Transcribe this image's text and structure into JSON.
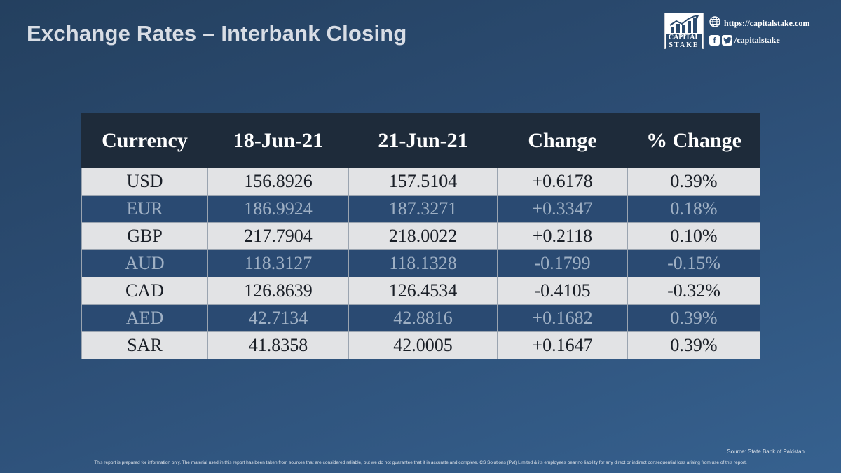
{
  "title": "Exchange Rates – Interbank Closing",
  "brand": {
    "logo_line1": "CAPITAL",
    "logo_line2": "STAKE",
    "website": "https://capitalstake.com",
    "social_handle": "/capitalstake",
    "icons": [
      "globe-icon",
      "facebook-icon",
      "twitter-icon",
      "chart-logo-icon"
    ]
  },
  "table": {
    "headers": [
      "Currency",
      "18-Jun-21",
      "21-Jun-21",
      "Change",
      "% Change"
    ],
    "rows": [
      {
        "currency": "USD",
        "prev": "156.8926",
        "curr": "157.5104",
        "change": "+0.6178",
        "pct": "0.39%"
      },
      {
        "currency": "EUR",
        "prev": "186.9924",
        "curr": "187.3271",
        "change": "+0.3347",
        "pct": "0.18%"
      },
      {
        "currency": "GBP",
        "prev": "217.7904",
        "curr": "218.0022",
        "change": "+0.2118",
        "pct": "0.10%"
      },
      {
        "currency": "AUD",
        "prev": "118.3127",
        "curr": "118.1328",
        "change": "-0.1799",
        "pct": "-0.15%"
      },
      {
        "currency": "CAD",
        "prev": "126.8639",
        "curr": "126.4534",
        "change": "-0.4105",
        "pct": "-0.32%"
      },
      {
        "currency": "AED",
        "prev": "42.7134",
        "curr": "42.8816",
        "change": "+0.1682",
        "pct": "0.39%"
      },
      {
        "currency": "SAR",
        "prev": "41.8358",
        "curr": "42.0005",
        "change": "+0.1647",
        "pct": "0.39%"
      }
    ]
  },
  "source": "Source: State Bank of Pakistan",
  "disclaimer": "This report is prepared for information only. The material used in this report has been taken from sources that are considered  reliable, but we do not guarantee that it is accurate and complete. CS Solutions (Pvt) Limited & its employees bear no liability for any direct or indirect consequential  loss arising from use of this report.",
  "colors": {
    "header_bg": "#1e2b3a",
    "row_light": "#e2e3e5",
    "row_dark": "#2a4a72",
    "background": "#2c4d74"
  }
}
